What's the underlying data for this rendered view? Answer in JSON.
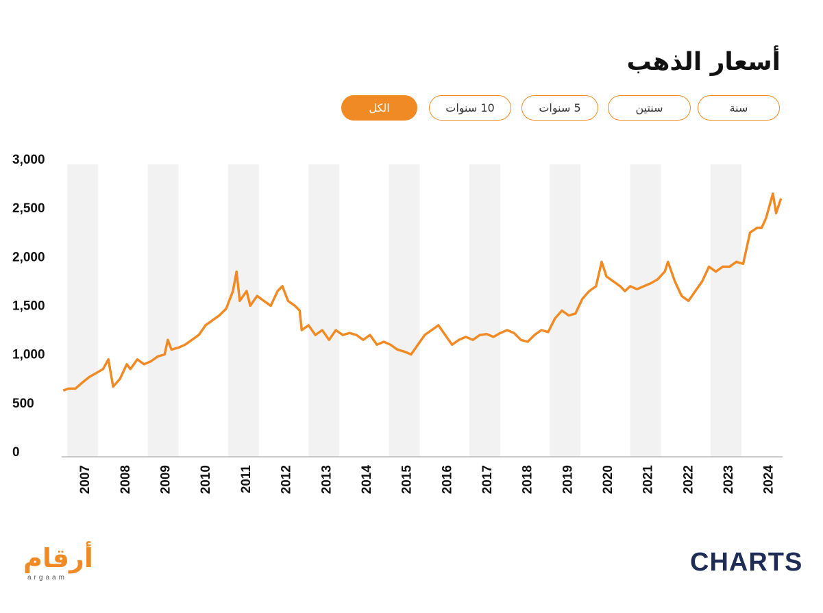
{
  "header": {
    "title": "أسعار الذهب"
  },
  "filters": [
    {
      "label": "سنة",
      "active": false
    },
    {
      "label": "سنتين",
      "active": false
    },
    {
      "label": "5 سنوات",
      "active": false
    },
    {
      "label": "10 سنوات",
      "active": false
    },
    {
      "label": "الكل",
      "active": true
    }
  ],
  "chart_data": {
    "type": "line",
    "color": "#f08a24",
    "band_color": "#f2f2f2",
    "x": [
      2006.44,
      2006.57,
      2006.74,
      2006.91,
      2007.09,
      2007.26,
      2007.43,
      2007.56,
      2007.68,
      2007.85,
      2008.02,
      2008.11,
      2008.28,
      2008.45,
      2008.62,
      2008.79,
      2008.96,
      2009.04,
      2009.13,
      2009.3,
      2009.47,
      2009.64,
      2009.81,
      2009.98,
      2010.15,
      2010.32,
      2010.49,
      2010.66,
      2010.75,
      2010.83,
      2011.0,
      2011.09,
      2011.26,
      2011.43,
      2011.6,
      2011.77,
      2011.89,
      2012.03,
      2012.2,
      2012.32,
      2012.37,
      2012.54,
      2012.71,
      2012.88,
      2013.05,
      2013.22,
      2013.39,
      2013.56,
      2013.73,
      2013.9,
      2014.07,
      2014.24,
      2014.41,
      2014.58,
      2014.75,
      2014.92,
      2015.09,
      2015.26,
      2015.43,
      2015.6,
      2015.77,
      2015.94,
      2016.11,
      2016.28,
      2016.45,
      2016.63,
      2016.8,
      2016.97,
      2017.14,
      2017.31,
      2017.48,
      2017.65,
      2017.82,
      2017.99,
      2018.16,
      2018.33,
      2018.5,
      2018.67,
      2018.84,
      2019.01,
      2019.18,
      2019.35,
      2019.52,
      2019.69,
      2019.83,
      2019.95,
      2020.12,
      2020.29,
      2020.41,
      2020.54,
      2020.71,
      2020.88,
      2021.05,
      2021.22,
      2021.4,
      2021.48,
      2021.65,
      2021.82,
      2021.99,
      2022.16,
      2022.33,
      2022.5,
      2022.67,
      2022.84,
      2023.01,
      2023.18,
      2023.35,
      2023.52,
      2023.7,
      2023.81,
      2023.92,
      2024.09,
      2024.17,
      2024.29
    ],
    "values": [
      680,
      700,
      700,
      760,
      820,
      860,
      900,
      1000,
      720,
      800,
      950,
      900,
      1000,
      950,
      980,
      1030,
      1050,
      1200,
      1100,
      1120,
      1150,
      1200,
      1250,
      1350,
      1400,
      1450,
      1520,
      1700,
      1900,
      1600,
      1700,
      1550,
      1650,
      1600,
      1550,
      1700,
      1750,
      1600,
      1550,
      1500,
      1300,
      1350,
      1250,
      1300,
      1200,
      1300,
      1250,
      1270,
      1250,
      1200,
      1250,
      1150,
      1180,
      1150,
      1100,
      1080,
      1050,
      1150,
      1250,
      1300,
      1350,
      1250,
      1150,
      1200,
      1230,
      1200,
      1250,
      1260,
      1230,
      1270,
      1300,
      1270,
      1200,
      1180,
      1250,
      1300,
      1280,
      1420,
      1500,
      1450,
      1470,
      1620,
      1700,
      1750,
      2000,
      1850,
      1800,
      1750,
      1700,
      1750,
      1720,
      1750,
      1780,
      1820,
      1900,
      2000,
      1800,
      1650,
      1600,
      1700,
      1800,
      1950,
      1900,
      1950,
      1950,
      2000,
      1980,
      2300,
      2350,
      2350,
      2450,
      2700,
      2500,
      2650
    ],
    "xlim": [
      2006.4,
      2024.33
    ],
    "xticks": [
      2007,
      2008,
      2009,
      2010,
      2011,
      2012,
      2013,
      2014,
      2015,
      2016,
      2017,
      2018,
      2019,
      2020,
      2021,
      2022,
      2023,
      2024
    ],
    "ylim": [
      0,
      3000
    ],
    "yticks": [
      0,
      500,
      {
        "value": 1000,
        "label": "1,000"
      },
      {
        "value": 1500,
        "label": "1,500"
      },
      {
        "value": 2000,
        "label": "2,000"
      },
      {
        "value": 2500,
        "label": "2,500"
      },
      {
        "value": 3000,
        "label": "3,000"
      }
    ]
  },
  "logos": {
    "argaam": "أرقام",
    "argaam_latin": "argaam",
    "charts": "CHARTS"
  }
}
